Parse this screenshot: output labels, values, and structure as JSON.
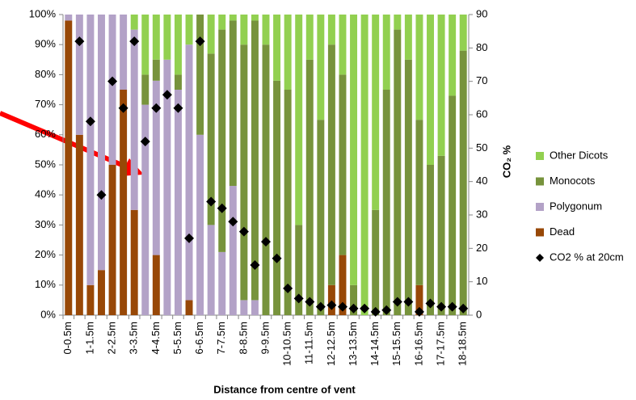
{
  "chart_data": {
    "type": "bar",
    "stacked": true,
    "xlabel": "Distance from centre of vent",
    "y2label": "CO₂ %",
    "categories": [
      "0-0.5m",
      null,
      "1-1.5m",
      null,
      "2-2.5m",
      null,
      "3-3.5m",
      null,
      "4-4.5m",
      null,
      "5-5.5m",
      null,
      "6-6.5m",
      null,
      "7-7.5m",
      null,
      "8-8.5m",
      null,
      "9-9.5m",
      null,
      "10-10.5m",
      null,
      "11-11.5m",
      null,
      "12-12.5m",
      null,
      "13-13.5m",
      null,
      "14-14.5m",
      null,
      "15-15.5m",
      null,
      "16-16.5m",
      null,
      "17-17.5m",
      null,
      "18-18.5m"
    ],
    "ylim": [
      0,
      100
    ],
    "yticks": [
      {
        "value": 0,
        "label": "0%"
      },
      {
        "value": 10,
        "label": "10%"
      },
      {
        "value": 20,
        "label": "20%"
      },
      {
        "value": 30,
        "label": "30%"
      },
      {
        "value": 40,
        "label": "40%"
      },
      {
        "value": 50,
        "label": "50%"
      },
      {
        "value": 60,
        "label": "60%"
      },
      {
        "value": 70,
        "label": "70%"
      },
      {
        "value": 80,
        "label": "80%"
      },
      {
        "value": 90,
        "label": "90%"
      },
      {
        "value": 100,
        "label": "100%"
      }
    ],
    "y2lim": [
      0,
      90
    ],
    "y2ticks": [
      0,
      10,
      20,
      30,
      40,
      50,
      60,
      70,
      80,
      90
    ],
    "legend": "right",
    "series": [
      {
        "name": "Dead",
        "color": "#984807",
        "values": [
          98,
          60,
          10,
          15,
          50,
          75,
          35,
          0,
          20,
          0,
          0,
          5,
          0,
          0,
          0,
          0,
          0,
          0,
          0,
          0,
          0,
          0,
          0,
          0,
          10,
          20,
          0,
          0,
          0,
          0,
          0,
          0,
          10,
          0,
          0,
          0,
          0
        ]
      },
      {
        "name": "Polygonum",
        "color": "#b3a2c7",
        "values": [
          2,
          40,
          90,
          85,
          50,
          25,
          60,
          70,
          58,
          85,
          75,
          85,
          60,
          30,
          21,
          43,
          5,
          5,
          0,
          0,
          0,
          0,
          0,
          0,
          0,
          0,
          0,
          0,
          0,
          0,
          0,
          0,
          0,
          0,
          0,
          0,
          0
        ]
      },
      {
        "name": "Monocots",
        "color": "#77933c",
        "values": [
          0,
          0,
          0,
          0,
          0,
          0,
          0,
          10,
          7,
          0,
          5,
          0,
          40,
          57,
          74,
          55,
          85,
          93,
          90,
          78,
          75,
          30,
          85,
          65,
          80,
          60,
          10,
          0,
          35,
          75,
          95,
          85,
          55,
          50,
          53,
          73,
          88
        ]
      },
      {
        "name": "Other Dicots",
        "color": "#92d050",
        "values": [
          0,
          0,
          0,
          0,
          0,
          0,
          5,
          20,
          15,
          15,
          20,
          10,
          0,
          13,
          5,
          2,
          10,
          2,
          10,
          22,
          25,
          70,
          15,
          35,
          10,
          20,
          90,
          100,
          65,
          25,
          5,
          15,
          35,
          50,
          47,
          27,
          12
        ]
      },
      {
        "name": "CO2 % at 20cm",
        "color": "#000000",
        "type": "scatter",
        "axis": "y2",
        "values": [
          null,
          82,
          58,
          36,
          70,
          62,
          82,
          52,
          62,
          66,
          62,
          23,
          82,
          34,
          32,
          28,
          25,
          15,
          22,
          17,
          8,
          5,
          4,
          2.5,
          3,
          2.5,
          2,
          2,
          1,
          1.5,
          4,
          4,
          1,
          3.5,
          2.5,
          2.5,
          2
        ]
      }
    ]
  }
}
